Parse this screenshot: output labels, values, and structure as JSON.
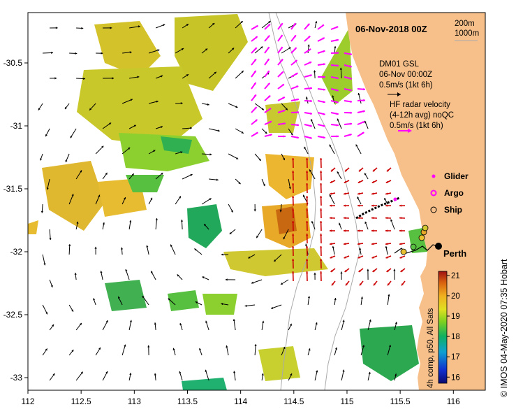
{
  "map": {
    "title": "06-Nov-2018 00Z",
    "x_ticks": [
      "112",
      "112.5",
      "113",
      "113.5",
      "114",
      "114.5",
      "115",
      "115.5",
      "116"
    ],
    "y_ticks": [
      "-30.5",
      "-31",
      "-31.5",
      "-32",
      "-32.5",
      "-33"
    ],
    "lon_range": [
      112,
      116.3
    ],
    "lat_range": [
      -33.1,
      -30.1
    ],
    "isobath_labels": {
      "a": "200m",
      "b": "1000m"
    },
    "glider_info": {
      "line1": "DM01 GSL",
      "line2": "06-Nov 00:00Z",
      "line3": "0.5m/s (1kt 6h)"
    },
    "radar_info": {
      "line1": "HF radar velocity",
      "line2": "(4-12h avg) noQC",
      "line3": "0.5m/s (1kt 6h)"
    },
    "legend": {
      "glider": "Glider",
      "argo": "Argo",
      "ship": "Ship"
    },
    "city": "Perth",
    "colorbar": {
      "label": "4h comp, p50, All Sats",
      "ticks": [
        "21",
        "20",
        "19",
        "18",
        "17",
        "16"
      ],
      "range": [
        15.7,
        21.2
      ]
    },
    "credit": "© IMOS 04-May-2020 07:35 Hobart",
    "colors": {
      "land": "#f7c08a",
      "hf_radar": "#ff00ff",
      "glider_track": "#cc0000",
      "currents": "#000000",
      "isobath": "#aaaaaa"
    }
  }
}
